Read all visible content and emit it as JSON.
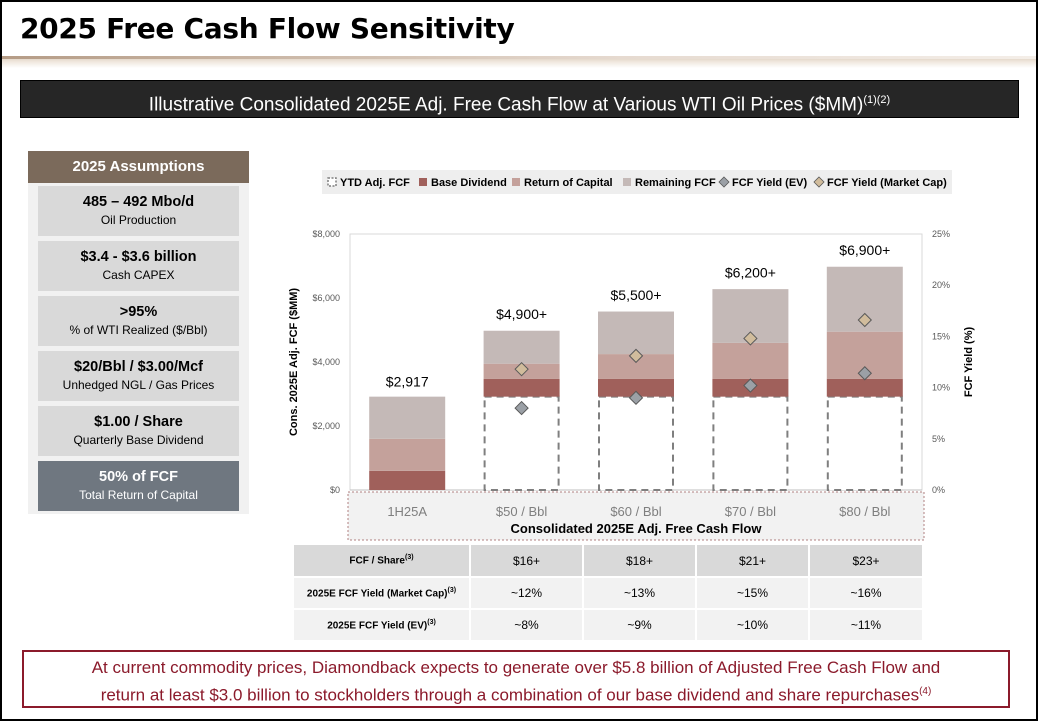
{
  "page": {
    "title": "2025 Free Cash Flow Sensitivity",
    "banner": "Illustrative Consolidated 2025E Adj. Free Cash Flow at Various WTI Oil Prices ($MM)",
    "banner_sup": "(1)(2)"
  },
  "assumptions": {
    "header": "2025 Assumptions",
    "items": [
      {
        "value": "485 – 492 Mbo/d",
        "label": "Oil Production"
      },
      {
        "value": "$3.4 - $3.6 billion",
        "label": "Cash CAPEX"
      },
      {
        "value": ">95%",
        "label": "% of WTI Realized ($/Bbl)"
      },
      {
        "value": "$20/Bbl / $3.00/Mcf",
        "label": "Unhedged NGL / Gas Prices"
      },
      {
        "value": "$1.00 / Share",
        "label": "Quarterly Base Dividend"
      },
      {
        "value": "50% of FCF",
        "label": "Total Return of Capital"
      }
    ]
  },
  "chart_data": {
    "type": "bar",
    "categories": [
      "1H25A",
      "$50 / Bbl",
      "$60 / Bbl",
      "$70 / Bbl",
      "$80 / Bbl"
    ],
    "xlabel": "Consolidated 2025E Adj. Free Cash Flow",
    "ylabel": "Cons. 2025E Adj. FCF ($MM)",
    "y2label": "FCF Yield (%)",
    "ylim": [
      0,
      8000
    ],
    "y2lim": [
      0,
      25
    ],
    "yticks": [
      "$0",
      "$2,000",
      "$4,000",
      "$6,000",
      "$8,000"
    ],
    "y2ticks": [
      "0%",
      "5%",
      "10%",
      "15%",
      "20%",
      "25%"
    ],
    "totals": [
      2917,
      4900,
      5500,
      6200,
      6900
    ],
    "total_labels": [
      "$2,917",
      "$4,900+",
      "$5,500+",
      "$6,200+",
      "$6,900+"
    ],
    "series": [
      {
        "name": "YTD Adj. FCF",
        "values": [
          0,
          2917,
          2917,
          2917,
          2917
        ],
        "color": "#7f7f7f"
      },
      {
        "name": "Base Dividend",
        "values": [
          600,
          560,
          560,
          560,
          560
        ],
        "color": "#a0605b"
      },
      {
        "name": "Return of Capital",
        "values": [
          1000,
          470,
          770,
          1120,
          1470
        ],
        "color": "#c4a19b"
      },
      {
        "name": "Remaining FCF",
        "values": [
          1317,
          1030,
          1330,
          1680,
          2030
        ],
        "color": "#c4b9b7"
      }
    ],
    "yield_series": [
      {
        "name": "FCF Yield (EV)",
        "values": [
          null,
          8,
          9,
          10.2,
          11.4
        ],
        "color": "#9ba0a6"
      },
      {
        "name": "FCF Yield (Market Cap)",
        "values": [
          null,
          11.8,
          13.1,
          14.8,
          16.6
        ],
        "color": "#d1bc9c"
      }
    ],
    "legend_position": "top"
  },
  "table": {
    "rows": [
      {
        "label": "FCF / Share",
        "sup": "(3)",
        "values": [
          "$16+",
          "$18+",
          "$21+",
          "$23+"
        ]
      },
      {
        "label": "2025E FCF Yield (Market Cap)",
        "sup": "(3)",
        "values": [
          "~12%",
          "~13%",
          "~15%",
          "~16%"
        ]
      },
      {
        "label": "2025E FCF Yield (EV)",
        "sup": "(3)",
        "values": [
          "~8%",
          "~9%",
          "~10%",
          "~11%"
        ]
      }
    ]
  },
  "callout": {
    "line1": "At current commodity prices, Diamondback expects to generate over $5.8 billion of Adjusted Free Cash Flow and",
    "line2": "return at least $3.0 billion to stockholders through a combination of our base dividend and share repurchases",
    "sup": "(4)"
  },
  "colors": {
    "accent": "#8b1a2b",
    "assumption_header": "#7b6a5b",
    "banner": "#262626"
  }
}
